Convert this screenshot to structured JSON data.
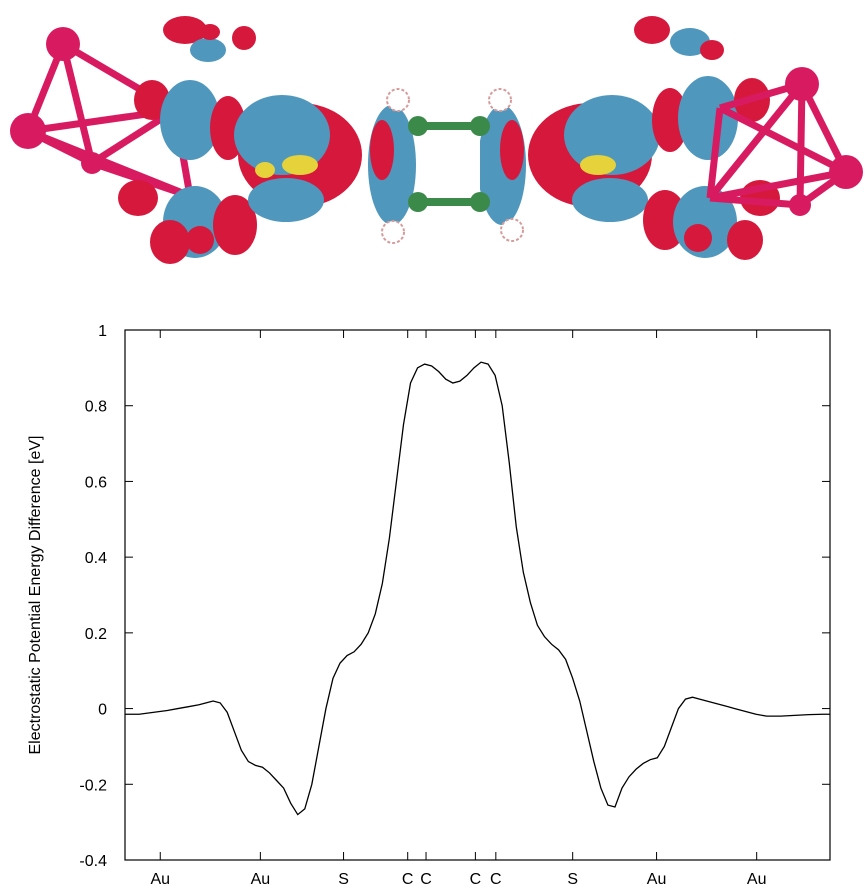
{
  "figure": {
    "molecule_image": {
      "description_icon": "molecule-isosurface",
      "colors": {
        "gold_atoms": "#d81b60",
        "negative_lobe": "#d6183c",
        "positive_lobe": "#4f97bc",
        "carbon": "#3c8a4a",
        "sulfur": "#e6d23a",
        "hydrogen": "#ffffff"
      }
    }
  },
  "chart_data": {
    "type": "line",
    "title": "",
    "xlabel": "",
    "ylabel": "Electrostatic Potential Energy Difference [eV]",
    "xlim": [
      0,
      100
    ],
    "ylim": [
      -0.4,
      1.0
    ],
    "yticks": [
      -0.4,
      -0.2,
      0,
      0.2,
      0.4,
      0.6,
      0.8,
      1
    ],
    "ytick_labels": [
      "-0.4",
      "-0.2",
      "0",
      "0.2",
      "0.4",
      "0.6",
      "0.8",
      "1"
    ],
    "xticks": [
      {
        "x": 5.0,
        "label": "Au"
      },
      {
        "x": 19.2,
        "label": "Au"
      },
      {
        "x": 31.0,
        "label": "S"
      },
      {
        "x": 40.1,
        "label": "C"
      },
      {
        "x": 42.7,
        "label": "C"
      },
      {
        "x": 49.7,
        "label": "C"
      },
      {
        "x": 52.6,
        "label": "C"
      },
      {
        "x": 63.5,
        "label": "S"
      },
      {
        "x": 75.4,
        "label": "Au"
      },
      {
        "x": 89.6,
        "label": "Au"
      }
    ],
    "grid": false,
    "line_color": "#000000",
    "series": [
      {
        "x": [
          0,
          2,
          4,
          6,
          7.5,
          9,
          10.5,
          11.5,
          12.5,
          13.5,
          14.5,
          15.5,
          16.5,
          17.5,
          18.5,
          19.5,
          20.5,
          21.5,
          22.5,
          23.5,
          24.5,
          25.5,
          26.5,
          27.5,
          28.5,
          29.5,
          30.5,
          31.5,
          32.5,
          33.5,
          34.5,
          35.5,
          36.5,
          37.5,
          38.5,
          39.5,
          40.5,
          41.5,
          42.5,
          43.5,
          44.5,
          45.5,
          46.5,
          47.5,
          48.5,
          49.5,
          50.5,
          51.5,
          52.5,
          53.5,
          54.5,
          55.5,
          56.5,
          57.5,
          58.5,
          59.5,
          60.5,
          61.5,
          62.5,
          63.5,
          64.5,
          65.5,
          66.5,
          67.5,
          68.5,
          69.5,
          70.5,
          71.5,
          72.5,
          73.5,
          74.5,
          75.5,
          76.5,
          77.5,
          78.5,
          79.5,
          80.5,
          81.5,
          82.5,
          83.5,
          84.5,
          85.5,
          86.5,
          87.5,
          88.5,
          89.5,
          91,
          93,
          95,
          97,
          99,
          100
        ],
        "y": [
          -0.015,
          -0.015,
          -0.01,
          -0.005,
          0.0,
          0.005,
          0.01,
          0.015,
          0.02,
          0.015,
          -0.01,
          -0.06,
          -0.11,
          -0.14,
          -0.15,
          -0.155,
          -0.17,
          -0.19,
          -0.21,
          -0.25,
          -0.28,
          -0.265,
          -0.2,
          -0.1,
          0.0,
          0.08,
          0.12,
          0.14,
          0.15,
          0.17,
          0.2,
          0.25,
          0.33,
          0.45,
          0.6,
          0.75,
          0.86,
          0.9,
          0.91,
          0.905,
          0.89,
          0.87,
          0.86,
          0.865,
          0.88,
          0.9,
          0.915,
          0.91,
          0.88,
          0.8,
          0.65,
          0.48,
          0.36,
          0.28,
          0.22,
          0.19,
          0.17,
          0.155,
          0.13,
          0.08,
          0.02,
          -0.06,
          -0.14,
          -0.21,
          -0.255,
          -0.26,
          -0.21,
          -0.18,
          -0.16,
          -0.145,
          -0.135,
          -0.13,
          -0.1,
          -0.05,
          0.0,
          0.025,
          0.03,
          0.025,
          0.02,
          0.015,
          0.01,
          0.005,
          0.0,
          -0.005,
          -0.01,
          -0.015,
          -0.02,
          -0.02,
          -0.018,
          -0.016,
          -0.015,
          -0.015
        ]
      }
    ]
  }
}
